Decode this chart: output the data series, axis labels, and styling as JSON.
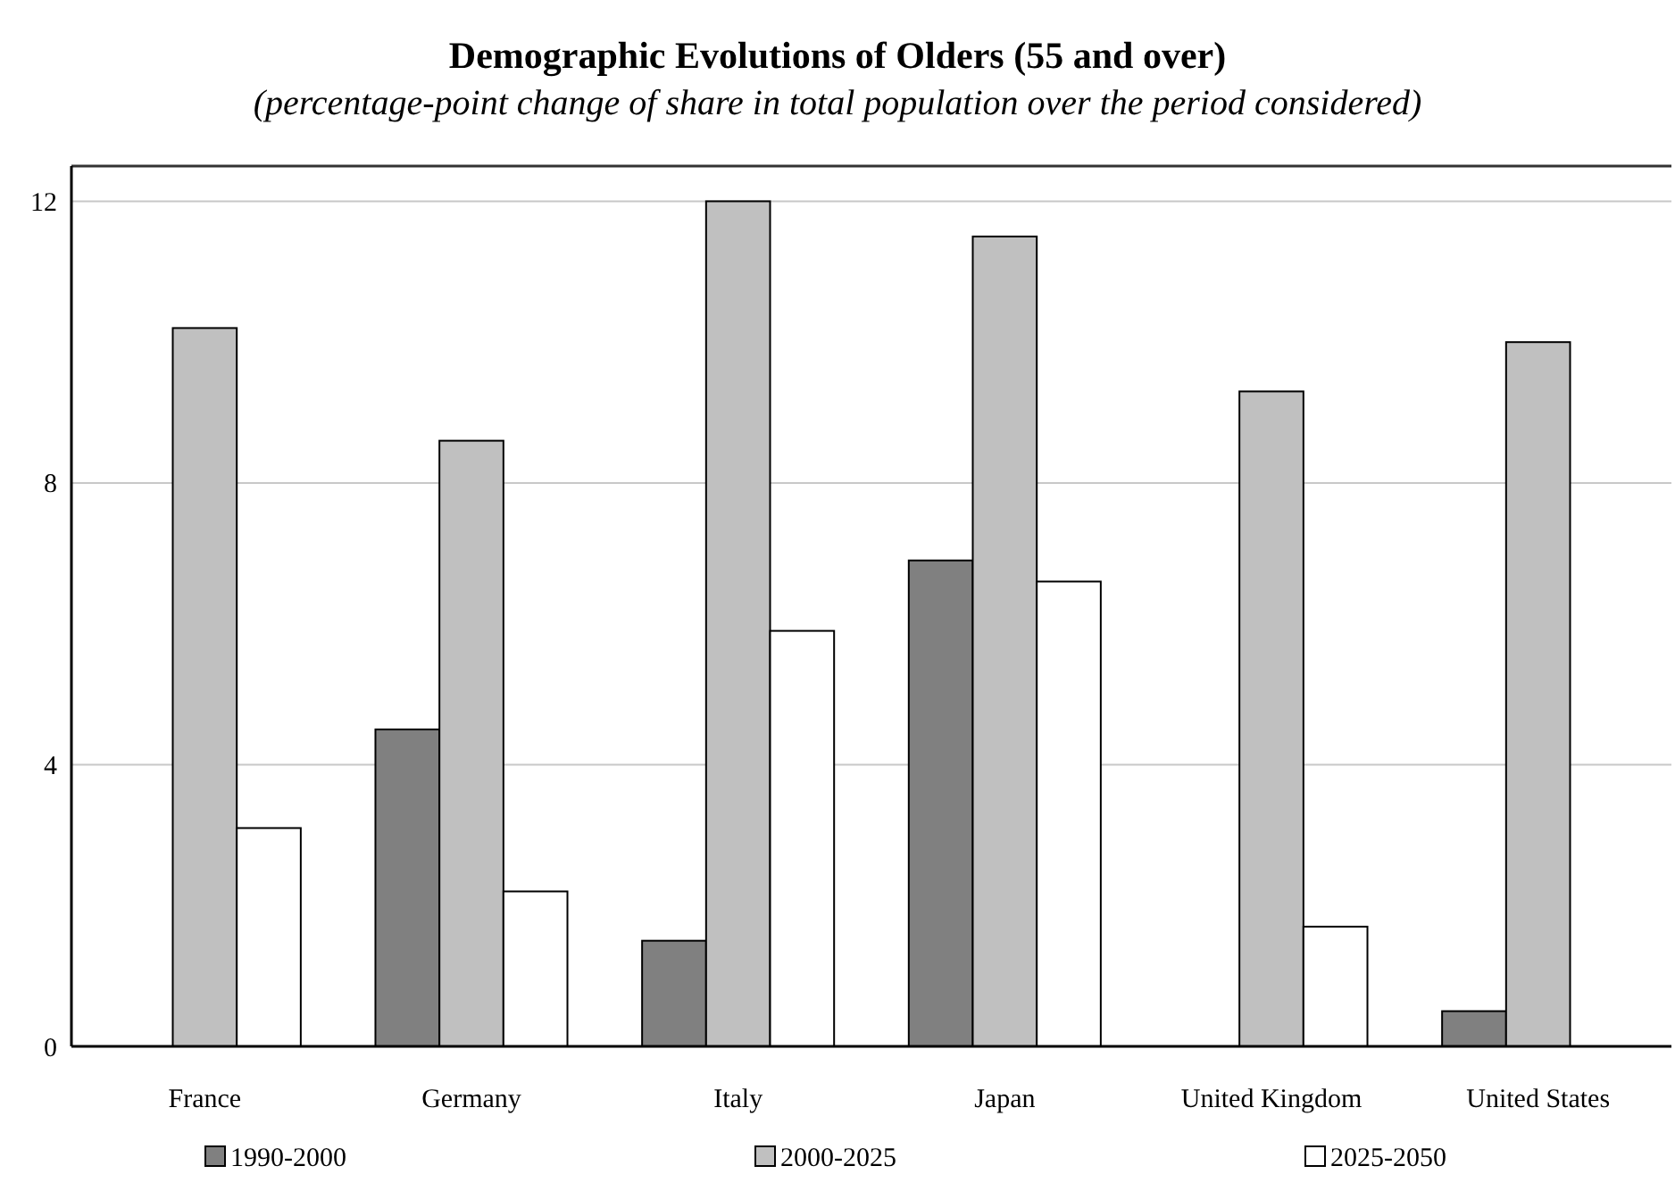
{
  "chart_data": {
    "type": "bar",
    "title": "Demographic Evolutions of Olders (55 and over)",
    "subtitle": "(percentage-point change of share in total population over the period considered)",
    "categories": [
      "France",
      "Germany",
      "Italy",
      "Japan",
      "United Kingdom",
      "United States"
    ],
    "series": [
      {
        "name": "1990-2000",
        "color": "#808080",
        "values": [
          null,
          4.5,
          1.5,
          6.9,
          null,
          0.5
        ]
      },
      {
        "name": "2000-2025",
        "color": "#c0c0c0",
        "values": [
          10.2,
          8.6,
          12.0,
          11.5,
          9.3,
          10.0
        ]
      },
      {
        "name": "2025-2050",
        "color": "#ffffff",
        "values": [
          3.1,
          2.2,
          5.9,
          6.6,
          1.7,
          null
        ]
      }
    ],
    "ylim": [
      0,
      12.5
    ],
    "yticks": [
      0,
      4,
      8,
      12
    ],
    "grid": "y",
    "legend": "bottom"
  }
}
